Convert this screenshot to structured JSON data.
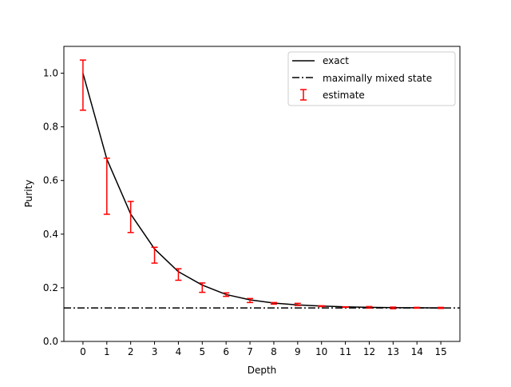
{
  "chart_data": {
    "type": "line",
    "xlabel": "Depth",
    "ylabel": "Purity",
    "xlim": [
      -0.8,
      15.8
    ],
    "ylim": [
      0.0,
      1.1
    ],
    "xticks": [
      "0",
      "1",
      "2",
      "3",
      "4",
      "5",
      "6",
      "7",
      "8",
      "9",
      "10",
      "11",
      "12",
      "13",
      "14",
      "15"
    ],
    "yticks": [
      "0.0",
      "0.2",
      "0.4",
      "0.6",
      "0.8",
      "1.0"
    ],
    "grid": false,
    "legend_position": "top-right",
    "series": [
      {
        "name": "exact",
        "style": "solid",
        "color": "#000000",
        "x": [
          0,
          1,
          2,
          3,
          4,
          5,
          6,
          7,
          8,
          9,
          10,
          11,
          12,
          13,
          14,
          15
        ],
        "y": [
          1.0,
          0.68,
          0.475,
          0.345,
          0.26,
          0.21,
          0.175,
          0.155,
          0.143,
          0.136,
          0.132,
          0.129,
          0.127,
          0.126,
          0.1255,
          0.125
        ]
      },
      {
        "name": "maximally mixed state",
        "style": "dashdot",
        "color": "#000000",
        "y_constant": 0.125
      },
      {
        "name": "estimate",
        "style": "errorbar",
        "color": "#ff0000",
        "x": [
          0,
          1,
          2,
          3,
          4,
          5,
          6,
          7,
          8,
          9,
          10,
          11,
          12,
          13,
          14,
          15
        ],
        "y_low": [
          0.862,
          0.474,
          0.406,
          0.292,
          0.228,
          0.183,
          0.168,
          0.145,
          0.139,
          0.134,
          0.13,
          0.127,
          0.124,
          0.122,
          0.124,
          0.123
        ],
        "y_high": [
          1.049,
          0.683,
          0.522,
          0.351,
          0.271,
          0.218,
          0.181,
          0.16,
          0.145,
          0.142,
          0.133,
          0.129,
          0.13,
          0.128,
          0.127,
          0.127
        ]
      }
    ]
  }
}
